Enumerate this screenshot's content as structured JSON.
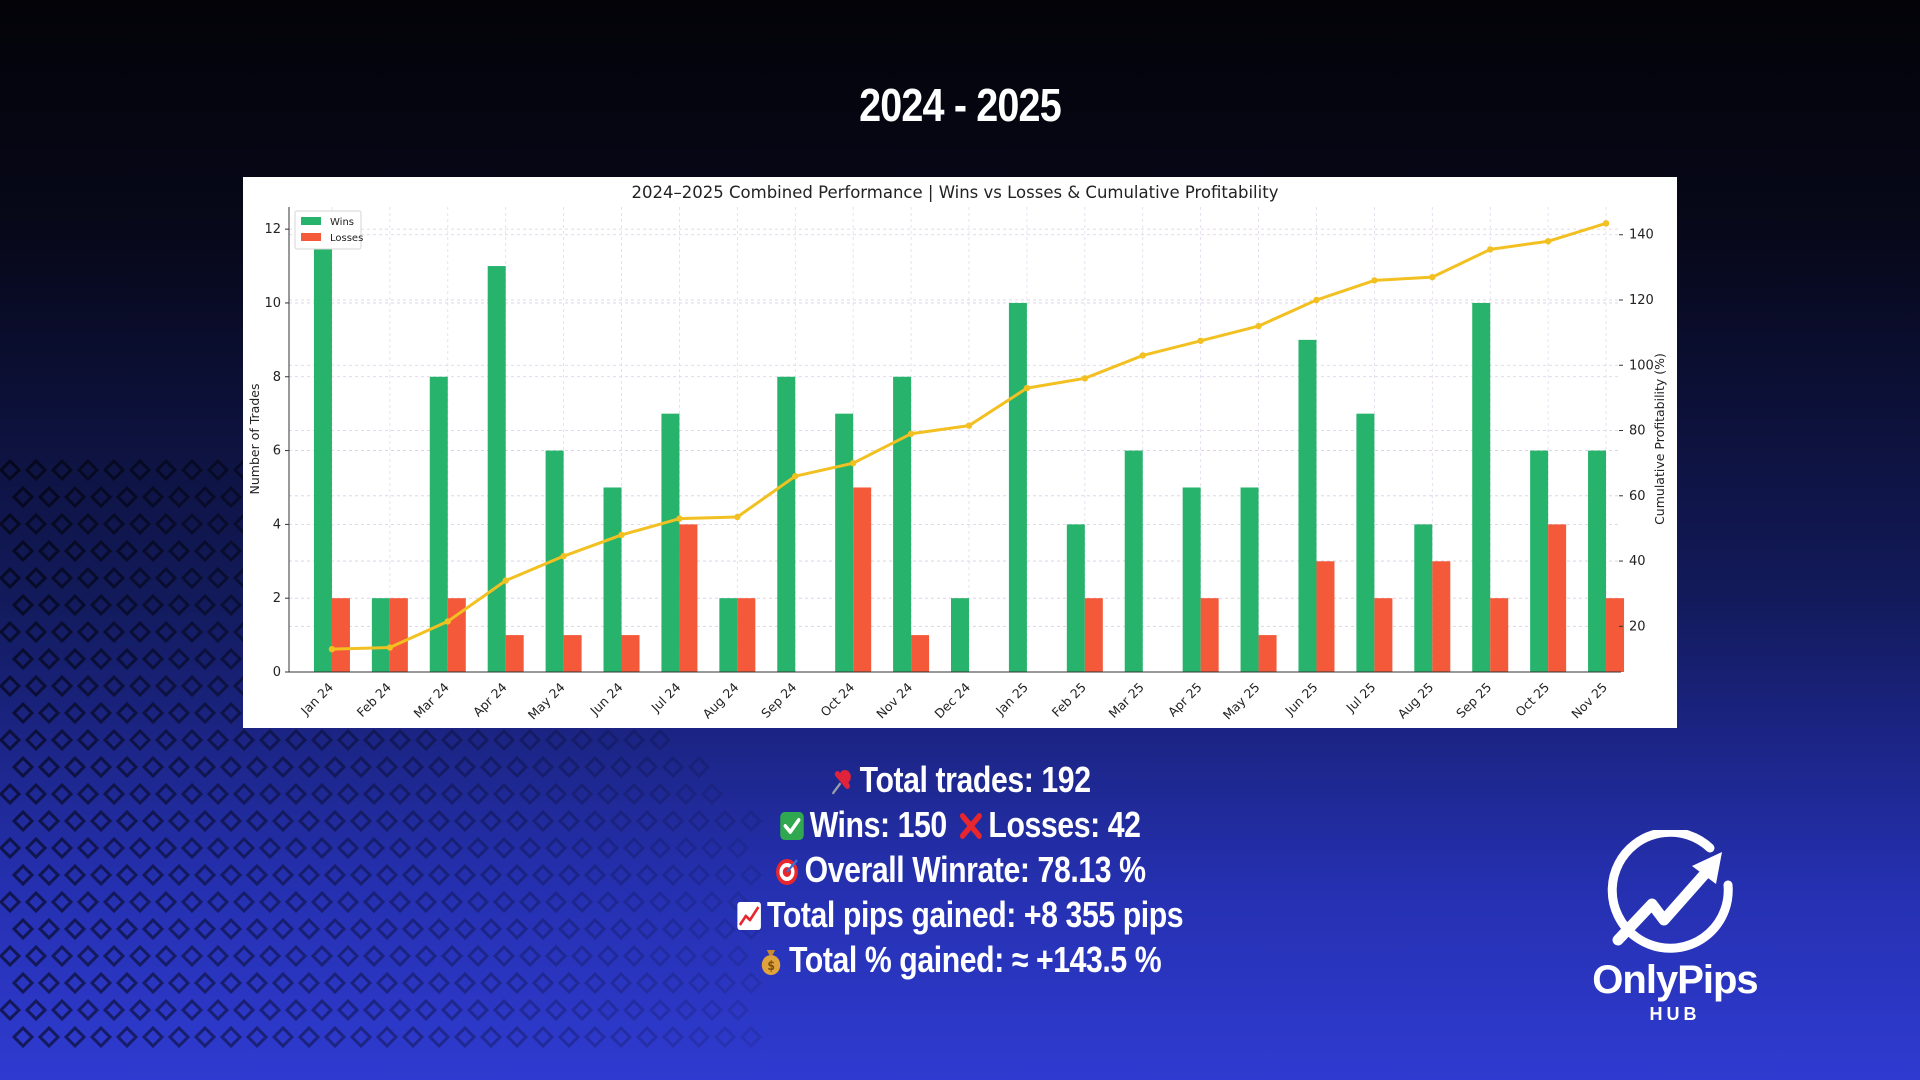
{
  "header": {
    "title": "2024 - 2025"
  },
  "chart_data": {
    "type": "bar",
    "title": "2024–2025 Combined Performance | Wins vs Losses & Cumulative Profitability",
    "categories": [
      "Jan 24",
      "Feb 24",
      "Mar 24",
      "Apr 24",
      "May 24",
      "Jun 24",
      "Jul 24",
      "Aug 24",
      "Sep 24",
      "Oct 24",
      "Nov 24",
      "Dec 24",
      "Jan 25",
      "Feb 25",
      "Mar 25",
      "Apr 25",
      "May 25",
      "Jun 25",
      "Jul 25",
      "Aug 25",
      "Sep 25",
      "Oct 25",
      "Nov 25"
    ],
    "series": [
      {
        "name": "Wins",
        "type": "bar",
        "axis": "left",
        "color": "#27b36b",
        "values": [
          12,
          2,
          8,
          11,
          6,
          5,
          7,
          2,
          8,
          7,
          8,
          2,
          10,
          4,
          6,
          5,
          5,
          9,
          7,
          4,
          10,
          6,
          6
        ]
      },
      {
        "name": "Losses",
        "type": "bar",
        "axis": "left",
        "color": "#f4593a",
        "values": [
          2,
          2,
          2,
          1,
          1,
          1,
          4,
          2,
          0,
          5,
          1,
          0,
          0,
          2,
          0,
          2,
          1,
          3,
          2,
          3,
          2,
          4,
          2
        ]
      },
      {
        "type": "line",
        "axis": "right",
        "color": "#f2c021",
        "values": [
          13,
          13.5,
          21.5,
          34,
          41.5,
          48,
          53,
          53.5,
          66,
          70,
          79,
          81.5,
          93,
          96,
          103,
          107.5,
          112,
          120,
          126,
          127,
          135.5,
          138,
          143.5
        ]
      }
    ],
    "ylabel": "Number of Trades",
    "y2label": "Cumulative Profitability (%)",
    "ylim": [
      0,
      12.6
    ],
    "y2lim": [
      6,
      148.5
    ],
    "yticks": [
      0,
      2,
      4,
      6,
      8,
      10,
      12
    ],
    "y2ticks": [
      20,
      40,
      60,
      80,
      100,
      120,
      140
    ],
    "grid": true,
    "legend_position": "upper-left"
  },
  "stats": {
    "total_trades": "Total trades: 192",
    "wins": "Wins: 150",
    "losses": "Losses: 42",
    "winrate": "Overall Winrate: 78.13 %",
    "pips": "Total pips gained: +8 355 pips",
    "percent": "Total % gained: ≈ +143.5 %"
  },
  "icons": {
    "total_trades": "pushpin-icon",
    "wins": "check-mark-icon",
    "losses": "cross-mark-icon",
    "winrate": "target-icon",
    "pips": "chart-increasing-icon",
    "percent": "money-bag-icon"
  },
  "logo": {
    "name": "OnlyPips",
    "sub": "HUB"
  }
}
